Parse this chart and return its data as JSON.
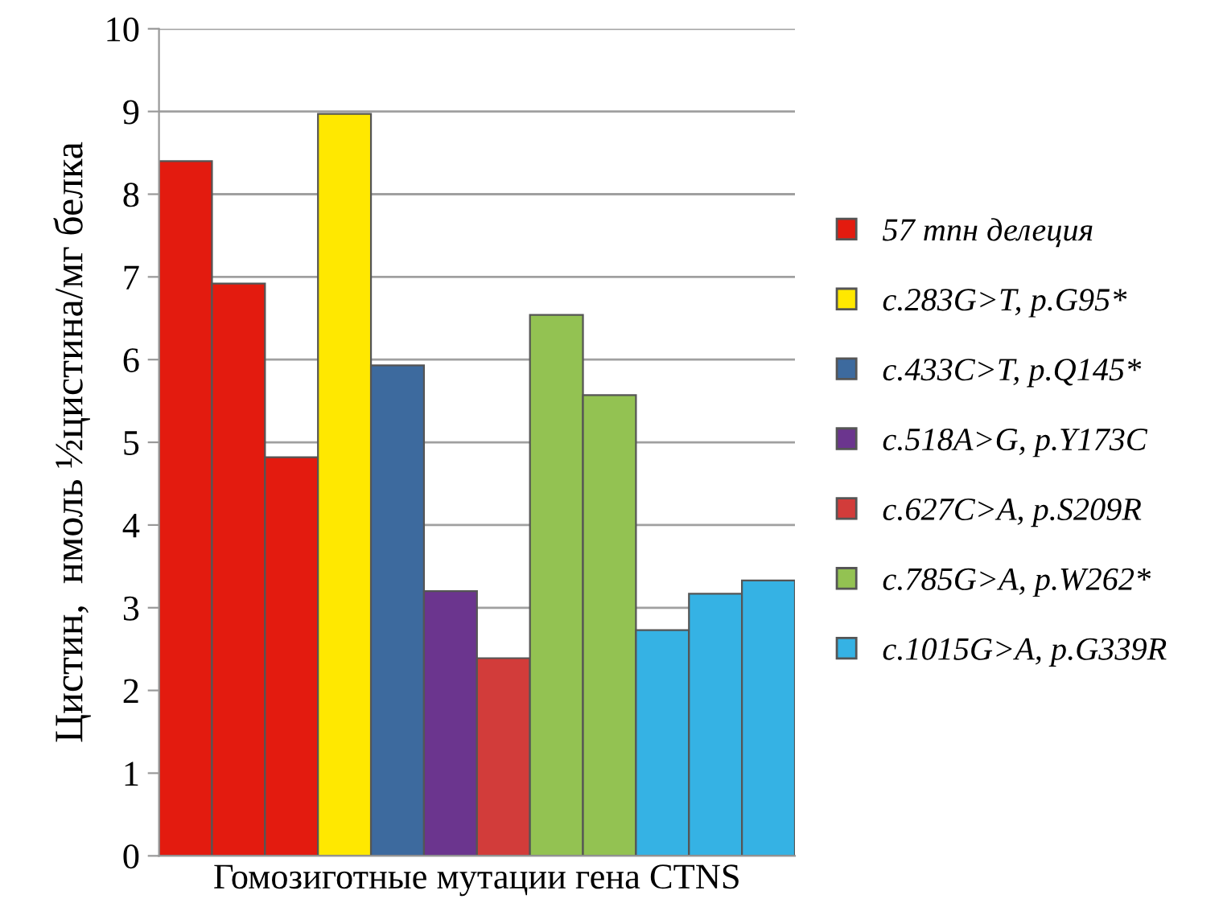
{
  "chart_data": {
    "type": "bar",
    "xlabel": "Гомозиготные мутации гена CTNS",
    "ylabel": "Цистин,  нмоль ½цистина/мг белка",
    "categories": [
      null,
      null,
      null,
      null,
      null,
      null,
      null,
      null,
      null,
      null,
      null,
      null
    ],
    "series": [
      {
        "name": "57 тпн делеция",
        "color": "#e31b0f",
        "values": [
          8.4,
          6.92,
          4.82,
          null,
          null,
          null,
          null,
          null,
          null,
          null,
          null,
          null
        ]
      },
      {
        "name": "c.283G>T, p.G95*",
        "color": "#ffe800",
        "values": [
          null,
          null,
          null,
          8.97,
          null,
          null,
          null,
          null,
          null,
          null,
          null,
          null
        ]
      },
      {
        "name": "c.433C>T, p.Q145*",
        "color": "#3d6a9e",
        "values": [
          null,
          null,
          null,
          null,
          5.93,
          null,
          null,
          null,
          null,
          null,
          null,
          null
        ]
      },
      {
        "name": "c.518A>G, p.Y173C",
        "color": "#6b358e",
        "values": [
          null,
          null,
          null,
          null,
          null,
          3.2,
          null,
          null,
          null,
          null,
          null,
          null
        ]
      },
      {
        "name": "c.627C>A, p.S209R",
        "color": "#d23c3a",
        "values": [
          null,
          null,
          null,
          null,
          null,
          null,
          2.39,
          null,
          null,
          null,
          null,
          null
        ]
      },
      {
        "name": "c.785G>A, p.W262*",
        "color": "#93c252",
        "values": [
          null,
          null,
          null,
          null,
          null,
          null,
          null,
          6.54,
          5.57,
          null,
          null,
          null
        ]
      },
      {
        "name": "c.1015G>A, p.G339R",
        "color": "#35b2e4",
        "values": [
          null,
          null,
          null,
          null,
          null,
          null,
          null,
          null,
          null,
          2.73,
          3.17,
          3.33
        ]
      }
    ],
    "ylim": [
      0,
      10
    ],
    "yticks": [
      0,
      1,
      2,
      3,
      4,
      5,
      6,
      7,
      8,
      9,
      10
    ],
    "grid": "y",
    "legend": "right"
  }
}
